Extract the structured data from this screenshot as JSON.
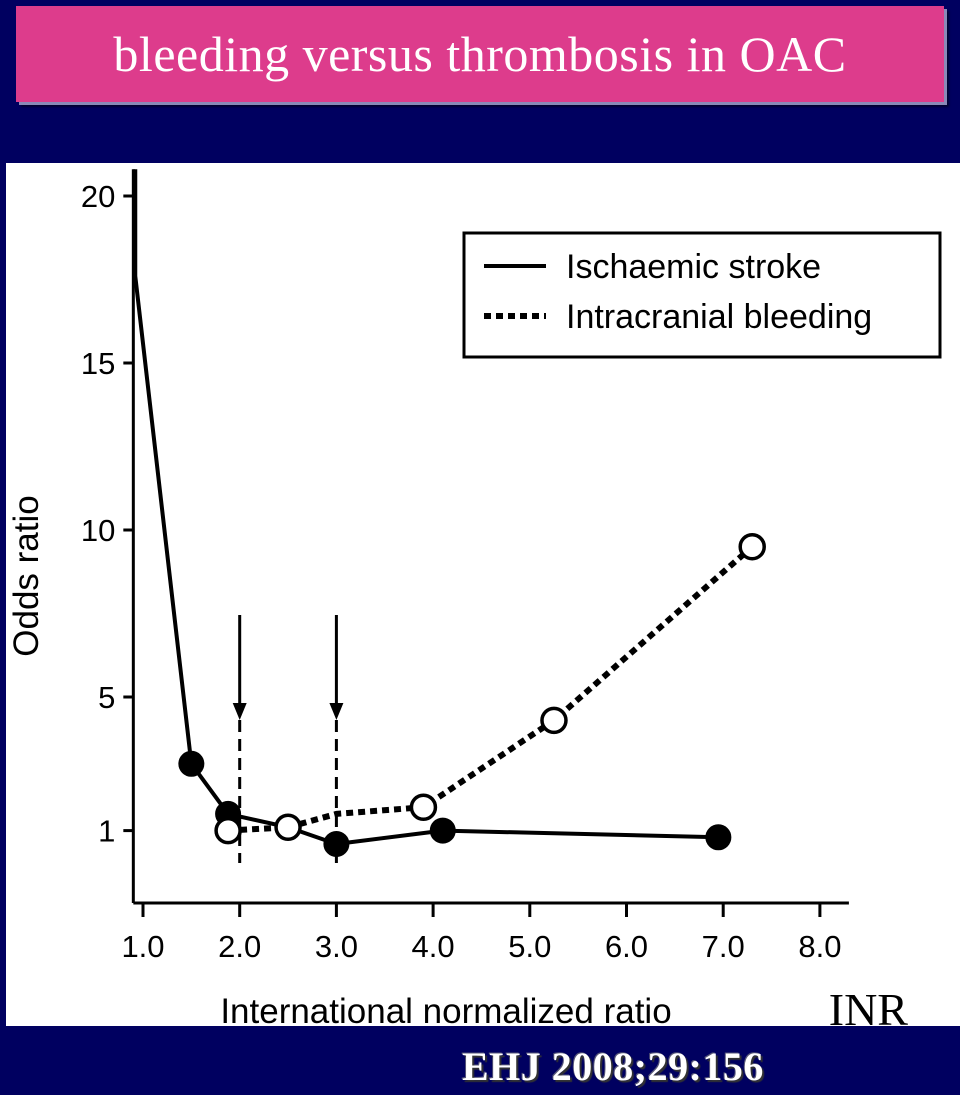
{
  "title": "bleeding versus thrombosis in OAC",
  "citation": "EHJ 2008;29:156",
  "inr_label": "INR",
  "chart_data": {
    "type": "line",
    "xlabel": "International normalized ratio",
    "ylabel": "Odds ratio",
    "x_ticks": [
      "1.0",
      "2.0",
      "3.0",
      "4.0",
      "5.0",
      "6.0",
      "7.0",
      "8.0"
    ],
    "x_tick_values": [
      1.0,
      2.0,
      3.0,
      4.0,
      5.0,
      6.0,
      7.0,
      8.0
    ],
    "y_ticks": [
      "1",
      "5",
      "10",
      "15",
      "20"
    ],
    "y_tick_values": [
      1,
      5,
      10,
      15,
      20
    ],
    "xlim": [
      0.9,
      8.3
    ],
    "ylim": [
      0,
      20.8
    ],
    "grid": false,
    "legend_position": "top-right",
    "series": [
      {
        "name": "Ischaemic stroke",
        "style": "solid",
        "marker": "filled-circle",
        "line": [
          [
            0.92,
            20.8
          ],
          [
            0.92,
            17.6
          ],
          [
            1.5,
            3.0
          ],
          [
            1.88,
            1.5
          ],
          [
            2.5,
            1.1
          ],
          [
            3.0,
            0.6
          ],
          [
            4.1,
            1.0
          ],
          [
            6.95,
            0.8
          ]
        ],
        "markers": [
          [
            1.5,
            3.0
          ],
          [
            1.88,
            1.5
          ],
          [
            3.0,
            0.6
          ],
          [
            4.1,
            1.0
          ],
          [
            6.95,
            0.8
          ]
        ]
      },
      {
        "name": "Intracranial bleeding",
        "style": "dotted",
        "marker": "open-circle",
        "line": [
          [
            1.88,
            1.0
          ],
          [
            2.5,
            1.1
          ],
          [
            3.0,
            1.5
          ],
          [
            3.9,
            1.7
          ],
          [
            5.25,
            4.3
          ],
          [
            7.3,
            9.5
          ]
        ],
        "markers": [
          [
            1.88,
            1.0
          ],
          [
            2.5,
            1.1
          ],
          [
            3.9,
            1.7
          ],
          [
            5.25,
            4.3
          ],
          [
            7.3,
            9.5
          ]
        ]
      }
    ],
    "annotations": [
      {
        "type": "arrow",
        "x": 2.0
      },
      {
        "type": "arrow",
        "x": 3.0
      }
    ]
  }
}
